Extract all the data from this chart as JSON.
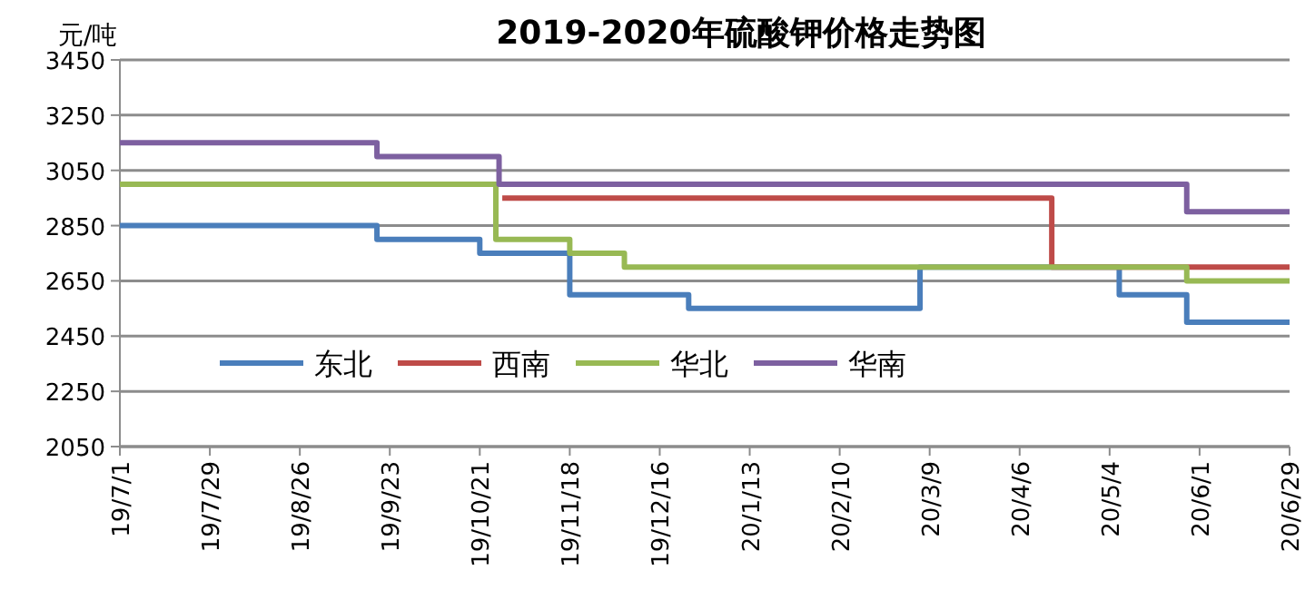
{
  "chart_data": {
    "type": "step",
    "title": "2019-2020年硫酸钾价格走势图",
    "ylabel": "元/吨",
    "xlim": [
      "2019-07-01",
      "2020-06-29"
    ],
    "xticks": [
      {
        "value": "2019-07-01",
        "label": "19/7/1"
      },
      {
        "value": "2019-07-29",
        "label": "19/7/29"
      },
      {
        "value": "2019-08-26",
        "label": "19/8/26"
      },
      {
        "value": "2019-09-23",
        "label": "19/9/23"
      },
      {
        "value": "2019-10-21",
        "label": "19/10/21"
      },
      {
        "value": "2019-11-18",
        "label": "19/11/18"
      },
      {
        "value": "2019-12-16",
        "label": "19/12/16"
      },
      {
        "value": "2020-01-13",
        "label": "20/1/13"
      },
      {
        "value": "2020-02-10",
        "label": "20/2/10"
      },
      {
        "value": "2020-03-09",
        "label": "20/3/9"
      },
      {
        "value": "2020-04-06",
        "label": "20/4/6"
      },
      {
        "value": "2020-05-04",
        "label": "20/5/4"
      },
      {
        "value": "2020-06-01",
        "label": "20/6/1"
      },
      {
        "value": "2020-06-29",
        "label": "20/6/29"
      }
    ],
    "ylim": [
      2050,
      3450
    ],
    "yticks": [
      2050,
      2250,
      2450,
      2650,
      2850,
      3050,
      3250,
      3450
    ],
    "grid": "y",
    "legend": "bottom left",
    "line_style": "solid",
    "marker": "none",
    "series": [
      {
        "name": "东北",
        "color": "#4a7ebb",
        "x": [
          "2019-07-01",
          "2019-09-19",
          "2019-10-21",
          "2019-11-18",
          "2019-12-25",
          "2020-03-06",
          "2020-05-07",
          "2020-05-28",
          "2020-06-29"
        ],
        "values": [
          2850,
          2800,
          2750,
          2600,
          2550,
          2700,
          2600,
          2500,
          2500
        ]
      },
      {
        "name": "西南",
        "color": "#be4b48",
        "x": [
          "2019-10-28",
          "2020-04-16",
          "2020-06-29"
        ],
        "values": [
          2950,
          2700,
          2700
        ]
      },
      {
        "name": "华北",
        "color": "#98b954",
        "x": [
          "2019-07-01",
          "2019-10-26",
          "2019-11-18",
          "2019-12-05",
          "2020-05-28",
          "2020-06-29"
        ],
        "values": [
          3000,
          2800,
          2750,
          2700,
          2650,
          2650
        ]
      },
      {
        "name": "华南",
        "color": "#7d60a0",
        "x": [
          "2019-07-01",
          "2019-09-19",
          "2019-10-27",
          "2020-05-28",
          "2020-06-29"
        ],
        "values": [
          3150,
          3100,
          3000,
          2900,
          2900
        ]
      }
    ]
  }
}
